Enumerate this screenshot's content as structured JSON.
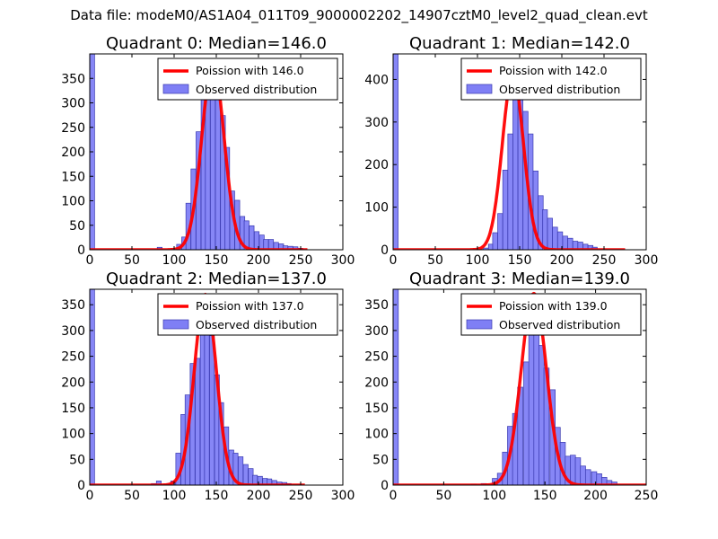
{
  "suptitle": "Data file: modeM0/AS1A04_011T09_9000002202_14907cztM0_level2_quad_clean.evt",
  "colors": {
    "hist_fill": "#7f7ff5",
    "hist_edge": "#3a3ab0",
    "poisson": "#ff0000"
  },
  "chart_data": [
    {
      "type": "histogram+line",
      "title": "Quadrant 0: Median=146.0",
      "xlim": [
        0,
        300
      ],
      "ylim": [
        0,
        400
      ],
      "xticks": [
        0,
        50,
        100,
        150,
        200,
        250,
        300
      ],
      "yticks": [
        0,
        50,
        100,
        150,
        200,
        250,
        300,
        350
      ],
      "bin_width": 5.75,
      "bins": [
        [
          0,
          400
        ],
        [
          80,
          5
        ],
        [
          85,
          0
        ],
        [
          91,
          0
        ],
        [
          97,
          3
        ],
        [
          103,
          11
        ],
        [
          109,
          26
        ],
        [
          114,
          95
        ],
        [
          120,
          165
        ],
        [
          126,
          241
        ],
        [
          132,
          307
        ],
        [
          137,
          309
        ],
        [
          143,
          379
        ],
        [
          149,
          318
        ],
        [
          155,
          274
        ],
        [
          160,
          209
        ],
        [
          166,
          120
        ],
        [
          172,
          101
        ],
        [
          178,
          68
        ],
        [
          183,
          59
        ],
        [
          189,
          49
        ],
        [
          195,
          37
        ],
        [
          201,
          30
        ],
        [
          206,
          21
        ],
        [
          212,
          21
        ],
        [
          218,
          15
        ],
        [
          224,
          12
        ],
        [
          229,
          8
        ],
        [
          235,
          7
        ],
        [
          241,
          6
        ],
        [
          247,
          3
        ]
      ],
      "poisson": {
        "mean": 146.0,
        "peak": 380,
        "sigma": 13.2,
        "x_range": [
          0,
          258
        ]
      },
      "legend": [
        "Poission with 146.0",
        "Observed distribution"
      ]
    },
    {
      "type": "histogram+line",
      "title": "Quadrant 1: Median=142.0",
      "xlim": [
        0,
        300
      ],
      "ylim": [
        0,
        460
      ],
      "xticks": [
        0,
        50,
        100,
        150,
        200,
        250,
        300
      ],
      "yticks": [
        0,
        100,
        200,
        300,
        400
      ],
      "bin_width": 5.9,
      "bins": [
        [
          0,
          460
        ],
        [
          95,
          2
        ],
        [
          101,
          1
        ],
        [
          107,
          4
        ],
        [
          113,
          13
        ],
        [
          118,
          40
        ],
        [
          124,
          85
        ],
        [
          130,
          187
        ],
        [
          136,
          272
        ],
        [
          142,
          357
        ],
        [
          148,
          414
        ],
        [
          154,
          325
        ],
        [
          160,
          272
        ],
        [
          166,
          185
        ],
        [
          172,
          127
        ],
        [
          177,
          94
        ],
        [
          183,
          74
        ],
        [
          189,
          53
        ],
        [
          195,
          42
        ],
        [
          201,
          32
        ],
        [
          207,
          27
        ],
        [
          213,
          20
        ],
        [
          219,
          18
        ],
        [
          225,
          13
        ],
        [
          231,
          10
        ],
        [
          236,
          6
        ]
      ],
      "poisson": {
        "mean": 142.0,
        "peak": 412,
        "sigma": 12.5,
        "x_range": [
          0,
          275
        ]
      },
      "legend": [
        "Poission with 142.0",
        "Observed distribution"
      ]
    },
    {
      "type": "histogram+line",
      "title": "Quadrant 2: Median=137.0",
      "xlim": [
        0,
        300
      ],
      "ylim": [
        0,
        380
      ],
      "xticks": [
        0,
        50,
        100,
        150,
        200,
        250,
        300
      ],
      "yticks": [
        0,
        50,
        100,
        150,
        200,
        250,
        300,
        350
      ],
      "bin_width": 5.7,
      "bins": [
        [
          0,
          380
        ],
        [
          73,
          3
        ],
        [
          79,
          8
        ],
        [
          85,
          1
        ],
        [
          91,
          3
        ],
        [
          96,
          8
        ],
        [
          102,
          62
        ],
        [
          108,
          137
        ],
        [
          113,
          175
        ],
        [
          119,
          236
        ],
        [
          125,
          246
        ],
        [
          131,
          330
        ],
        [
          136,
          316
        ],
        [
          142,
          290
        ],
        [
          148,
          214
        ],
        [
          153,
          160
        ],
        [
          159,
          113
        ],
        [
          165,
          68
        ],
        [
          170,
          62
        ],
        [
          176,
          55
        ],
        [
          182,
          40
        ],
        [
          188,
          32
        ],
        [
          193,
          19
        ],
        [
          199,
          17
        ],
        [
          205,
          13
        ],
        [
          210,
          12
        ],
        [
          216,
          9
        ],
        [
          222,
          6
        ],
        [
          228,
          5
        ],
        [
          233,
          3
        ]
      ],
      "poisson": {
        "mean": 137.0,
        "peak": 370,
        "sigma": 13.0,
        "x_range": [
          0,
          255
        ]
      },
      "legend": [
        "Poission with 137.0",
        "Observed distribution"
      ]
    },
    {
      "type": "histogram+line",
      "title": "Quadrant 3: Median=139.0",
      "xlim": [
        0,
        250
      ],
      "ylim": [
        0,
        380
      ],
      "xticks": [
        0,
        50,
        100,
        150,
        200,
        250
      ],
      "yticks": [
        0,
        50,
        100,
        150,
        200,
        250,
        300,
        350
      ],
      "bin_width": 5.15,
      "bins": [
        [
          0,
          380
        ],
        [
          77,
          2
        ],
        [
          87,
          3
        ],
        [
          98,
          13
        ],
        [
          103,
          23
        ],
        [
          108,
          64
        ],
        [
          113,
          114
        ],
        [
          118,
          139
        ],
        [
          123,
          190
        ],
        [
          129,
          239
        ],
        [
          134,
          313
        ],
        [
          139,
          332
        ],
        [
          144,
          271
        ],
        [
          149,
          227
        ],
        [
          155,
          185
        ],
        [
          160,
          112
        ],
        [
          165,
          83
        ],
        [
          170,
          56
        ],
        [
          175,
          58
        ],
        [
          180,
          53
        ],
        [
          185,
          37
        ],
        [
          190,
          30
        ],
        [
          196,
          26
        ],
        [
          201,
          22
        ],
        [
          206,
          15
        ],
        [
          211,
          9
        ],
        [
          216,
          6
        ]
      ],
      "poisson": {
        "mean": 139.0,
        "peak": 372,
        "sigma": 12.4,
        "x_range": [
          0,
          250
        ]
      },
      "legend": [
        "Poission with 139.0",
        "Observed distribution"
      ]
    }
  ]
}
